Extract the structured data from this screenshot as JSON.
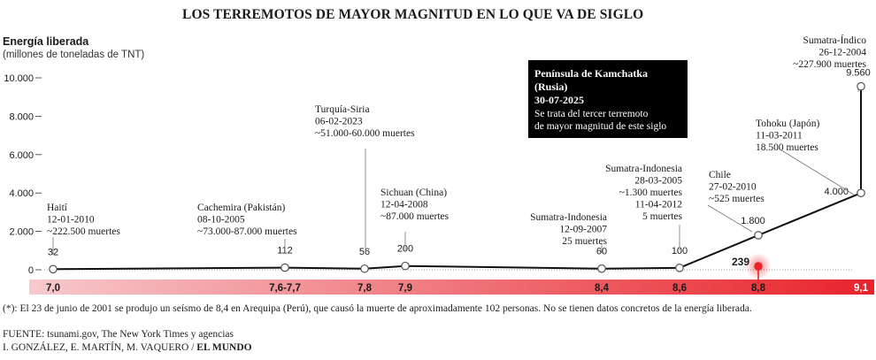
{
  "title": "LOS TERREMOTOS DE MAYOR MAGNITUD EN LO QUE VA DE SIGLO",
  "yaxis": {
    "label": "Energía liberada",
    "unit": "(millones de toneladas de TNT)"
  },
  "footnote": "(*): El 23 de junio de 2001 se produjo un seísmo de 8,4 en Arequipa (Perú), que causó la muerte de aproximadamente 102 personas. No se tienen datos concretos de la energía liberada.",
  "source": "FUENTE: tsunami.gov, The New York Times y agencias",
  "credits_authors": "I. GONZÁLEZ, E. MARTÍN, M. VAQUERO /",
  "credits_outlet": "EL MUNDO",
  "colors": {
    "line": "#111111",
    "highlight": "#e8232a",
    "band_start": "#f7c9cd",
    "band_end": "#e8232a",
    "callout_bg": "#000000",
    "callout_text": "#ffffff"
  },
  "chart_data": {
    "type": "line",
    "title": "LOS TERREMOTOS DE MAYOR MAGNITUD EN LO QUE VA DE SIGLO",
    "ylabel": "Energía liberada",
    "yunit": "(millones de toneladas de TNT)",
    "ylim": [
      0,
      10000
    ],
    "yticks": [
      "0",
      "2.000",
      "4.000",
      "6.000",
      "8.000",
      "10.000"
    ],
    "ytick_values": [
      0,
      2000,
      4000,
      6000,
      8000,
      10000
    ],
    "xlabel": "",
    "x_magnitude_ticks": [
      {
        "label": "7,0",
        "value": 7.0
      },
      {
        "label": "7,6-7,7",
        "value": 7.65
      },
      {
        "label": "7,8",
        "value": 7.8
      },
      {
        "label": "7,9",
        "value": 7.9
      },
      {
        "label": "8,4",
        "value": 8.4
      },
      {
        "label": "8,6",
        "value": 8.6
      },
      {
        "label": "8,8",
        "value": 8.8
      },
      {
        "label": "9,1",
        "value": 9.1
      }
    ],
    "points": [
      {
        "magnitude": 7.0,
        "energy": 32,
        "value_label": "32",
        "name": "Haití",
        "date": "12-01-2010",
        "deaths": "~222.500 muertes"
      },
      {
        "magnitude": 7.65,
        "energy": 112,
        "value_label": "112",
        "name": "Cachemira (Pakistán)",
        "date": "08-10-2005",
        "deaths": "~73.000-87.000 muertes"
      },
      {
        "magnitude": 7.8,
        "energy": 56,
        "value_label": "56",
        "name": "Turquía-Siria",
        "date": "06-02-2023",
        "deaths": "~51.000-60.000 muertes"
      },
      {
        "magnitude": 7.9,
        "energy": 200,
        "value_label": "200",
        "name": "Sichuan (China)",
        "date": "12-04-2008",
        "deaths": "~87.000 muertes"
      },
      {
        "magnitude": 8.4,
        "energy": 60,
        "value_label": "60",
        "name": "Sumatra-Indonesia",
        "date": "12-09-2007",
        "deaths": "25 muertes"
      },
      {
        "magnitude": 8.6,
        "energy": 100,
        "value_label": "100",
        "name": "Sumatra-Indonesia",
        "date": "28-03-2005",
        "deaths": "~1.300 muertes",
        "date2": "11-04-2012",
        "deaths2": "5 muertes"
      },
      {
        "magnitude": 8.8,
        "energy": 239,
        "value_label": "239",
        "highlight": true,
        "name": "Península de Kamchatka",
        "name2": "(Rusia)",
        "date": "30-07-2025",
        "note": "Se trata del tercer terremoto",
        "note2": "de mayor magnitud de este siglo"
      },
      {
        "magnitude": 8.8,
        "energy": 1800,
        "value_label": "1.800",
        "name": "Chile",
        "date": "27-02-2010",
        "deaths": "~525 muertes"
      },
      {
        "magnitude": 9.1,
        "energy": 4000,
        "value_label": "4.000",
        "name": "Tohoku (Japón)",
        "date": "11-03-2011",
        "deaths": "18.500 muertes"
      },
      {
        "magnitude": 9.1,
        "energy": 9560,
        "value_label": "9.560",
        "name": "Sumatra-Índico",
        "date": "26-12-2004",
        "deaths": "~227.900 muertes"
      }
    ],
    "grid": false,
    "legend": "none"
  }
}
